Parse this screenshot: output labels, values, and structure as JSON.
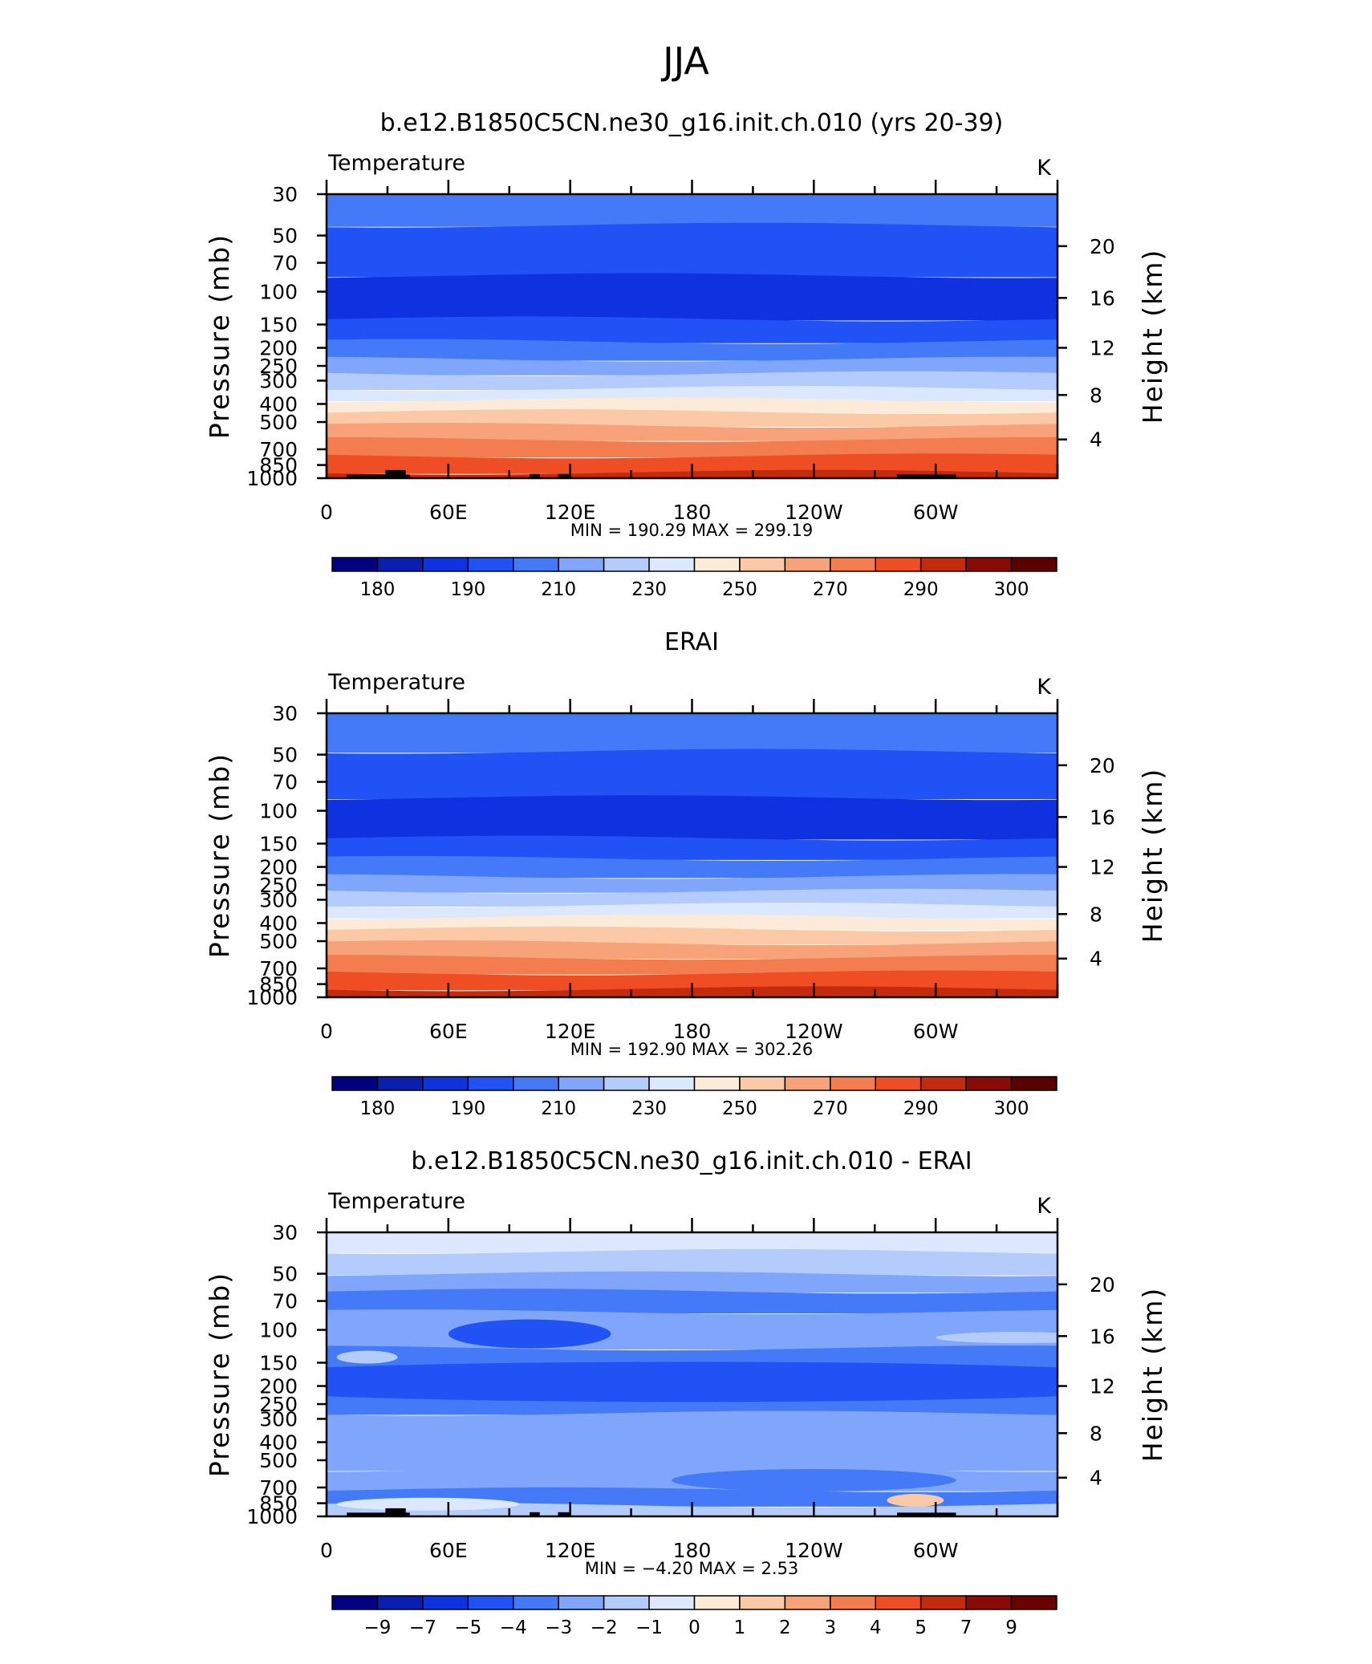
{
  "figure": {
    "title": "JJA"
  },
  "axis_common": {
    "x_ticks": [
      "0",
      "60E",
      "120E",
      "180",
      "120W",
      "60W"
    ],
    "y_left_label": "Pressure (mb)",
    "y_left_ticks": [
      "30",
      "50",
      "70",
      "100",
      "150",
      "200",
      "250",
      "300",
      "400",
      "500",
      "700",
      "850",
      "1000"
    ],
    "y_right_label": "Height (km)",
    "y_right_ticks": [
      "20",
      "16",
      "12",
      "8",
      "4"
    ]
  },
  "chart_data": [
    {
      "type": "heatmap",
      "title": "b.e12.B1850C5CN.ne30_g16.init.ch.010 (yrs 20-39)",
      "left_string": "Temperature",
      "right_string": "K",
      "xlabel": "",
      "ylabel": "Pressure (mb)",
      "y2label": "Height (km)",
      "y_scale": "log",
      "ylim": [
        1000,
        30
      ],
      "xlim": [
        0,
        360
      ],
      "min_label": "MIN =",
      "min": "190.29",
      "max_label": "MAX =",
      "max": "299.19",
      "colorbar_labels": [
        "180",
        "190",
        "210",
        "230",
        "250",
        "270",
        "290",
        "300"
      ],
      "bands": [
        {
          "p_top": 30,
          "p_bottom": 44,
          "level": 4
        },
        {
          "p_top": 44,
          "p_bottom": 82,
          "level": 3
        },
        {
          "p_top": 82,
          "p_bottom": 140,
          "level": 2
        },
        {
          "p_top": 140,
          "p_bottom": 185,
          "level": 3
        },
        {
          "p_top": 185,
          "p_bottom": 230,
          "level": 4
        },
        {
          "p_top": 230,
          "p_bottom": 275,
          "level": 5
        },
        {
          "p_top": 275,
          "p_bottom": 330,
          "level": 6
        },
        {
          "p_top": 330,
          "p_bottom": 380,
          "level": 7
        },
        {
          "p_top": 380,
          "p_bottom": 440,
          "level": 8
        },
        {
          "p_top": 440,
          "p_bottom": 520,
          "level": 9
        },
        {
          "p_top": 520,
          "p_bottom": 620,
          "level": 10
        },
        {
          "p_top": 620,
          "p_bottom": 760,
          "level": 11
        },
        {
          "p_top": 760,
          "p_bottom": 930,
          "level": 12
        },
        {
          "p_top": 930,
          "p_bottom": 1000,
          "level": 13
        }
      ],
      "topography": true
    },
    {
      "type": "heatmap",
      "title": "ERAI",
      "left_string": "Temperature",
      "right_string": "K",
      "xlabel": "",
      "ylabel": "Pressure (mb)",
      "y2label": "Height (km)",
      "y_scale": "log",
      "ylim": [
        1000,
        30
      ],
      "xlim": [
        0,
        360
      ],
      "min_label": "MIN =",
      "min": "192.90",
      "max_label": "MAX =",
      "max": "302.26",
      "colorbar_labels": [
        "180",
        "190",
        "210",
        "230",
        "250",
        "270",
        "290",
        "300"
      ],
      "bands": [
        {
          "p_top": 30,
          "p_bottom": 48,
          "level": 4
        },
        {
          "p_top": 48,
          "p_bottom": 85,
          "level": 3
        },
        {
          "p_top": 85,
          "p_bottom": 140,
          "level": 2
        },
        {
          "p_top": 140,
          "p_bottom": 180,
          "level": 3
        },
        {
          "p_top": 180,
          "p_bottom": 225,
          "level": 4
        },
        {
          "p_top": 225,
          "p_bottom": 270,
          "level": 5
        },
        {
          "p_top": 270,
          "p_bottom": 320,
          "level": 6
        },
        {
          "p_top": 320,
          "p_bottom": 370,
          "level": 7
        },
        {
          "p_top": 370,
          "p_bottom": 430,
          "level": 8
        },
        {
          "p_top": 430,
          "p_bottom": 510,
          "level": 9
        },
        {
          "p_top": 510,
          "p_bottom": 610,
          "level": 10
        },
        {
          "p_top": 610,
          "p_bottom": 740,
          "level": 11
        },
        {
          "p_top": 740,
          "p_bottom": 900,
          "level": 12
        },
        {
          "p_top": 900,
          "p_bottom": 1000,
          "level": 13
        }
      ],
      "topography": false
    },
    {
      "type": "heatmap",
      "title": "b.e12.B1850C5CN.ne30_g16.init.ch.010 - ERAI",
      "left_string": "Temperature",
      "right_string": "K",
      "xlabel": "",
      "ylabel": "Pressure (mb)",
      "y2label": "Height (km)",
      "y_scale": "log",
      "ylim": [
        1000,
        30
      ],
      "xlim": [
        0,
        360
      ],
      "min_label": "MIN =",
      "min": "−4.20",
      "max_label": "MAX =",
      "max": "2.53",
      "colorbar_labels": [
        "−9",
        "−7",
        "−5",
        "−4",
        "−3",
        "−2",
        "−1",
        "0",
        "1",
        "2",
        "3",
        "4",
        "5",
        "7",
        "9"
      ],
      "bands": [
        {
          "p_top": 30,
          "p_bottom": 38,
          "level": 7
        },
        {
          "p_top": 38,
          "p_bottom": 50,
          "level": 6
        },
        {
          "p_top": 50,
          "p_bottom": 62,
          "level": 5
        },
        {
          "p_top": 62,
          "p_bottom": 80,
          "level": 4
        },
        {
          "p_top": 80,
          "p_bottom": 125,
          "level": 5
        },
        {
          "p_top": 125,
          "p_bottom": 175,
          "level": 4
        },
        {
          "p_top": 175,
          "p_bottom": 280,
          "level": 4
        },
        {
          "p_top": 280,
          "p_bottom": 560,
          "level": 5
        },
        {
          "p_top": 560,
          "p_bottom": 720,
          "level": 5
        },
        {
          "p_top": 720,
          "p_bottom": 870,
          "level": 4
        },
        {
          "p_top": 870,
          "p_bottom": 1000,
          "level": 6
        }
      ],
      "topography": true
    }
  ],
  "colors": {
    "temp_palette": [
      "#000080",
      "#0a1fb0",
      "#0f32e0",
      "#2152f5",
      "#4479f7",
      "#7fa6fa",
      "#b3ccfc",
      "#dbe8fd",
      "#fcebd9",
      "#fbc9a5",
      "#f8a27a",
      "#f47d4f",
      "#ef4d23",
      "#c42a0c",
      "#8a0a05"
    ],
    "diff_palette": [
      "#000080",
      "#0a1fb0",
      "#0f32e0",
      "#2152f5",
      "#4479f7",
      "#7fa6fa",
      "#b3ccfc",
      "#dbe8fd",
      "#fdebd7",
      "#fbc9a5",
      "#f8a27a",
      "#f47d4f",
      "#ef4d23",
      "#c42a0c",
      "#8a0a05",
      "#6b0000"
    ],
    "topography": "#000000"
  }
}
